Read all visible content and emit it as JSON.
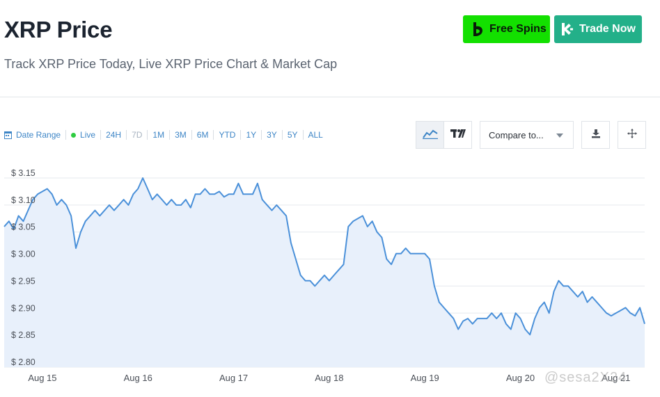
{
  "header": {
    "title": "XRP Price",
    "subtitle": "Track XRP Price Today, Live XRP Price Chart & Market Cap"
  },
  "promos": {
    "free_spins": "Free Spins",
    "trade_now": "Trade Now"
  },
  "toolbar": {
    "date_range": "Date Range",
    "live": "Live",
    "ranges": [
      "24H",
      "7D",
      "1M",
      "3M",
      "6M",
      "YTD",
      "1Y",
      "3Y",
      "5Y",
      "ALL"
    ],
    "selected_range": "7D",
    "compare_placeholder": "Compare to..."
  },
  "colors": {
    "line": "#4a90d9",
    "area": "#e8f0fb",
    "accent": "#3d85c6",
    "live": "#2ecc40",
    "free_spins_bg": "#13e000",
    "trade_now_bg": "#23b089"
  },
  "watermark": "@sesa2X24",
  "chart_data": {
    "type": "area",
    "title": "",
    "xlabel": "",
    "ylabel": "",
    "ylim": [
      2.8,
      3.15
    ],
    "yticks": [
      2.8,
      2.85,
      2.9,
      2.95,
      3.0,
      3.05,
      3.1,
      3.15
    ],
    "ytick_labels": [
      "$ 2.80",
      "$ 2.85",
      "$ 2.90",
      "$ 2.95",
      "$ 3.00",
      "$ 3.05",
      "$ 3.10",
      "$ 3.15"
    ],
    "xlim": [
      14.6,
      21.3
    ],
    "xticks": [
      15,
      16,
      17,
      18,
      19,
      20,
      21
    ],
    "xtick_labels": [
      "Aug 15",
      "Aug 16",
      "Aug 17",
      "Aug 18",
      "Aug 19",
      "Aug 20",
      "Aug 21"
    ],
    "grid": true,
    "series": [
      {
        "x": [
          14.6,
          14.65,
          14.7,
          14.75,
          14.8,
          14.85,
          14.9,
          14.95,
          15.0,
          15.05,
          15.1,
          15.15,
          15.2,
          15.25,
          15.3,
          15.35,
          15.4,
          15.45,
          15.5,
          15.55,
          15.6,
          15.65,
          15.7,
          15.75,
          15.8,
          15.85,
          15.9,
          15.95,
          16.0,
          16.05,
          16.1,
          16.15,
          16.2,
          16.25,
          16.3,
          16.35,
          16.4,
          16.45,
          16.5,
          16.55,
          16.6,
          16.65,
          16.7,
          16.75,
          16.8,
          16.85,
          16.9,
          16.95,
          17.0,
          17.05,
          17.1,
          17.15,
          17.2,
          17.25,
          17.3,
          17.35,
          17.4,
          17.45,
          17.5,
          17.55,
          17.6,
          17.65,
          17.7,
          17.75,
          17.8,
          17.85,
          17.9,
          17.95,
          18.0,
          18.05,
          18.1,
          18.15,
          18.2,
          18.25,
          18.3,
          18.35,
          18.4,
          18.45,
          18.5,
          18.55,
          18.6,
          18.65,
          18.7,
          18.75,
          18.8,
          18.85,
          18.9,
          18.95,
          19.0,
          19.05,
          19.1,
          19.15,
          19.2,
          19.25,
          19.3,
          19.35,
          19.4,
          19.45,
          19.5,
          19.55,
          19.6,
          19.65,
          19.7,
          19.75,
          19.8,
          19.85,
          19.9,
          19.95,
          20.0,
          20.05,
          20.1,
          20.15,
          20.2,
          20.25,
          20.3,
          20.35,
          20.4,
          20.45,
          20.5,
          20.55,
          20.6,
          20.65,
          20.7,
          20.75,
          20.8,
          20.85,
          20.9,
          20.95,
          21.0,
          21.05,
          21.1,
          21.15,
          21.2,
          21.25,
          21.3
        ],
        "y": [
          3.06,
          3.07,
          3.055,
          3.08,
          3.07,
          3.09,
          3.11,
          3.12,
          3.125,
          3.13,
          3.12,
          3.1,
          3.11,
          3.1,
          3.08,
          3.02,
          3.05,
          3.07,
          3.08,
          3.09,
          3.08,
          3.09,
          3.1,
          3.09,
          3.1,
          3.11,
          3.1,
          3.12,
          3.13,
          3.15,
          3.13,
          3.11,
          3.12,
          3.11,
          3.1,
          3.11,
          3.1,
          3.1,
          3.11,
          3.095,
          3.12,
          3.12,
          3.13,
          3.12,
          3.12,
          3.125,
          3.115,
          3.12,
          3.12,
          3.14,
          3.12,
          3.12,
          3.12,
          3.14,
          3.11,
          3.1,
          3.09,
          3.1,
          3.09,
          3.08,
          3.03,
          3.0,
          2.97,
          2.96,
          2.96,
          2.95,
          2.96,
          2.97,
          2.96,
          2.97,
          2.98,
          2.99,
          3.06,
          3.07,
          3.075,
          3.08,
          3.06,
          3.07,
          3.05,
          3.04,
          3.0,
          2.99,
          3.01,
          3.01,
          3.02,
          3.01,
          3.01,
          3.01,
          3.01,
          3.0,
          2.95,
          2.92,
          2.91,
          2.9,
          2.89,
          2.87,
          2.885,
          2.89,
          2.88,
          2.89,
          2.89,
          2.89,
          2.9,
          2.89,
          2.9,
          2.88,
          2.87,
          2.9,
          2.89,
          2.87,
          2.86,
          2.89,
          2.91,
          2.92,
          2.9,
          2.94,
          2.96,
          2.95,
          2.95,
          2.94,
          2.93,
          2.94,
          2.92,
          2.93,
          2.92,
          2.91,
          2.9,
          2.895,
          2.9,
          2.905,
          2.91,
          2.9,
          2.895,
          2.91,
          2.88
        ]
      }
    ]
  }
}
